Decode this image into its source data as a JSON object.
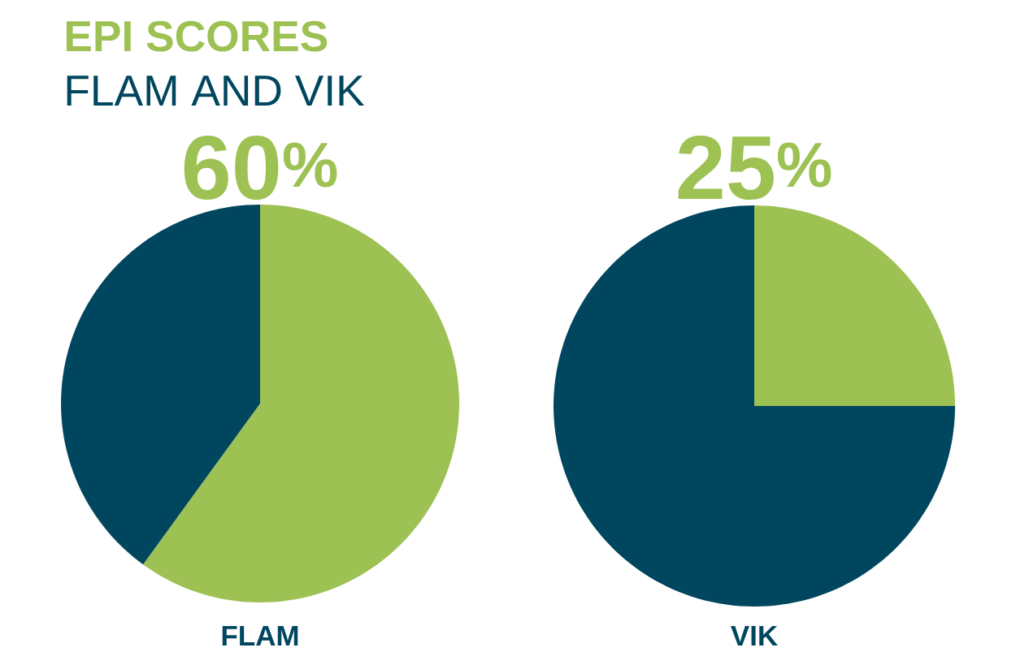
{
  "chart_data": [
    {
      "type": "pie",
      "title": "EPI SCORES",
      "subtitle": "FLAM AND VIK",
      "xlabel": "FLAM",
      "categories": [
        null,
        null
      ],
      "values": [
        60,
        40
      ],
      "colors": [
        "#9dc153",
        "#00465e"
      ],
      "value_labels": [
        "60$^{%}$",
        null
      ]
    },
    {
      "type": "pie",
      "xlabel": "VIK",
      "categories": [
        null,
        null
      ],
      "values": [
        25,
        75
      ],
      "colors": [
        "#9dc153",
        "#00465e"
      ],
      "value_labels": [
        "25$^{%}$",
        null
      ]
    }
  ]
}
